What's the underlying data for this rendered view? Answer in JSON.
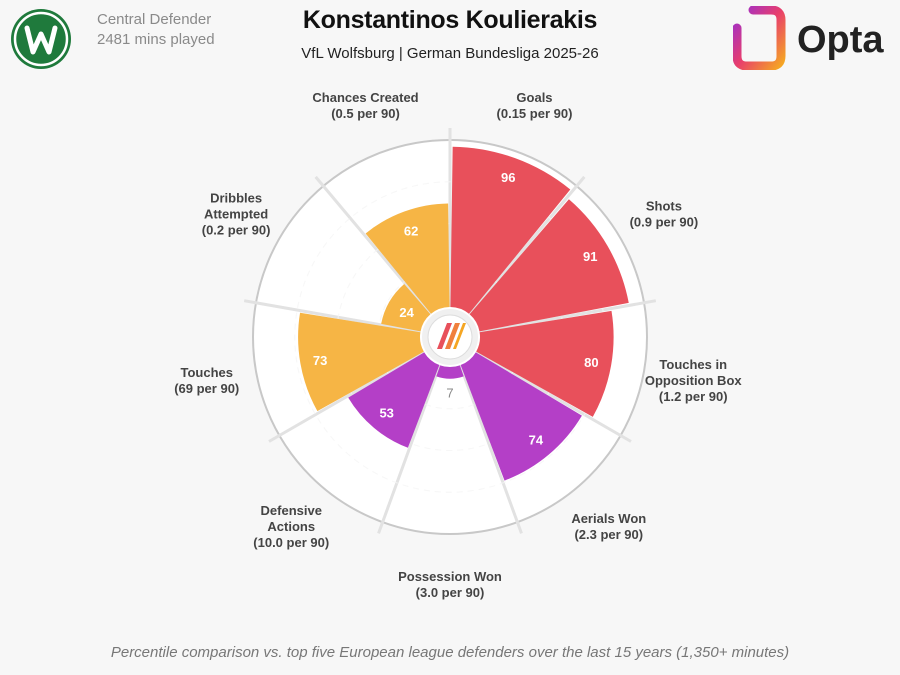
{
  "header": {
    "title": "Konstantinos Koulierakis",
    "subtitle": "VfL Wolfsburg | German Bundesliga 2025-26"
  },
  "player": {
    "position": "Central Defender",
    "minutes": "2481 mins played"
  },
  "branding": {
    "logo_text": "Opta",
    "badge_icon": "wolfsburg-crest-icon",
    "center_icon": "opta-mark-icon"
  },
  "footnote": "Percentile comparison vs. top five European league defenders over the last 15 years (1,350+ minutes)",
  "chart_data": {
    "type": "radial-bar",
    "scale": [
      0,
      100
    ],
    "rings": [
      25,
      50,
      75,
      100
    ],
    "segments": [
      {
        "label_lines": [
          "Goals",
          "(0.15 per 90)"
        ],
        "value": 96,
        "color": "#e8505b"
      },
      {
        "label_lines": [
          "Shots",
          "(0.9 per 90)"
        ],
        "value": 91,
        "color": "#e8505b"
      },
      {
        "label_lines": [
          "Touches in",
          "Opposition Box",
          "(1.2 per 90)"
        ],
        "value": 80,
        "color": "#e8505b"
      },
      {
        "label_lines": [
          "Aerials Won",
          "(2.3 per 90)"
        ],
        "value": 74,
        "color": "#b43fc7"
      },
      {
        "label_lines": [
          "Possession Won",
          "(3.0 per 90)"
        ],
        "value": 7,
        "color": "#b43fc7"
      },
      {
        "label_lines": [
          "Defensive",
          "Actions",
          "(10.0 per 90)"
        ],
        "value": 53,
        "color": "#b43fc7"
      },
      {
        "label_lines": [
          "Touches",
          "(69 per 90)"
        ],
        "value": 73,
        "color": "#f6b545"
      },
      {
        "label_lines": [
          "Dribbles",
          "Attempted",
          "(0.2 per 90)"
        ],
        "value": 24,
        "color": "#f6b545"
      },
      {
        "label_lines": [
          "Chances Created",
          "(0.5 per 90)"
        ],
        "value": 62,
        "color": "#f6b545"
      }
    ]
  }
}
